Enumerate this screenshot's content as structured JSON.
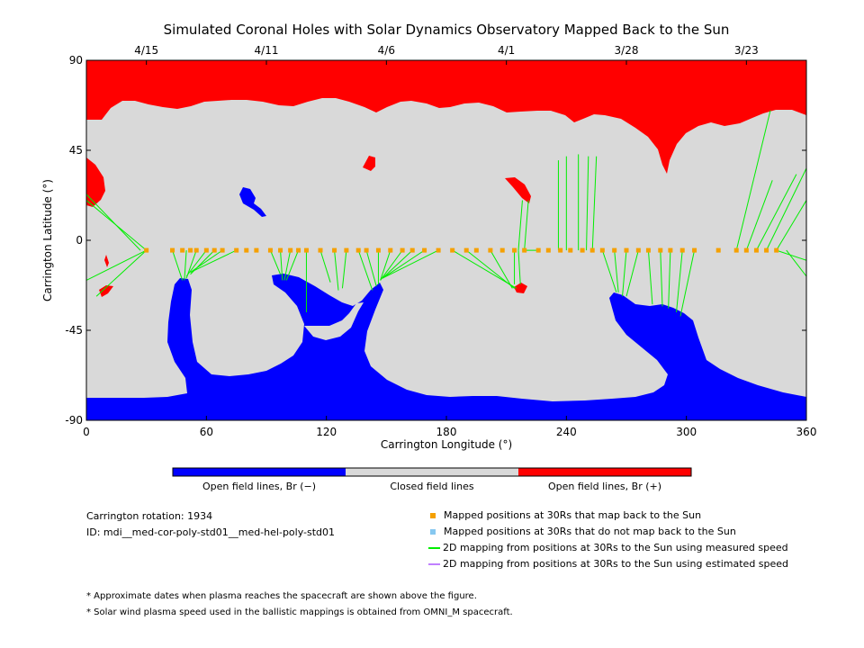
{
  "title": "Simulated Coronal Holes with Solar Dynamics Observatory Mapped Back to the Sun",
  "colors": {
    "open_negative": "#0000ff",
    "closed": "#d9d9d9",
    "open_positive": "#ff0000",
    "mapped_yes": "#f5a000",
    "mapped_no": "#87c8f0",
    "measured_line": "#00ee00",
    "estimated_line": "#c080ff"
  },
  "colorbar": {
    "labels": [
      "Open field lines, Br (−)",
      "Closed field lines",
      "Open field lines, Br (+)"
    ]
  },
  "info": {
    "rotation": "Carrington rotation: 1934",
    "id": "ID: mdi__med-cor-poly-std01__med-hel-poly-std01"
  },
  "legend": {
    "items": [
      {
        "kind": "square",
        "color": "#f5a000",
        "label": "Mapped positions at 30Rs that map back to the Sun"
      },
      {
        "kind": "square",
        "color": "#87c8f0",
        "label": "Mapped positions at 30Rs that do not map back to the Sun"
      },
      {
        "kind": "line",
        "color": "#00ee00",
        "label": "2D mapping from positions at 30Rs to the Sun using measured speed"
      },
      {
        "kind": "line",
        "color": "#c080ff",
        "label": "2D mapping from positions at 30Rs to the Sun using estimated speed"
      }
    ]
  },
  "notes": [
    "* Approximate dates when plasma reaches the spacecraft are shown above the figure.",
    "* Solar wind plasma speed used in the ballistic mappings is obtained from OMNI_M spacecraft."
  ],
  "chart_data": {
    "type": "map",
    "title": "Simulated Coronal Holes with Solar Dynamics Observatory Mapped Back to the Sun",
    "xlabel": "Carrington Longitude (°)",
    "ylabel": "Carrington Latitude (°)",
    "xlim": [
      0,
      360
    ],
    "ylim": [
      -90,
      90
    ],
    "xticks": [
      0,
      60,
      120,
      180,
      240,
      300,
      360
    ],
    "yticks": [
      -90,
      -45,
      0,
      45,
      90
    ],
    "top_axis": {
      "ticks": [
        {
          "label": "4/15",
          "lon": 30
        },
        {
          "label": "4/11",
          "lon": 90
        },
        {
          "label": "4/6",
          "lon": 150
        },
        {
          "label": "4/1",
          "lon": 210
        },
        {
          "label": "3/28",
          "lon": 270
        },
        {
          "label": "3/23",
          "lon": 330
        }
      ]
    },
    "mapped_points": [
      [
        30,
        -5
      ],
      [
        43,
        -5
      ],
      [
        48,
        -5
      ],
      [
        52,
        -5
      ],
      [
        55,
        -5
      ],
      [
        60,
        -5
      ],
      [
        64,
        -5
      ],
      [
        68,
        -5
      ],
      [
        75,
        -5
      ],
      [
        80,
        -5
      ],
      [
        85,
        -5
      ],
      [
        92,
        -5
      ],
      [
        97,
        -5
      ],
      [
        102,
        -5
      ],
      [
        106,
        -5
      ],
      [
        110,
        -5
      ],
      [
        117,
        -5
      ],
      [
        124,
        -5
      ],
      [
        130,
        -5
      ],
      [
        136,
        -5
      ],
      [
        140,
        -5
      ],
      [
        146,
        -5
      ],
      [
        152,
        -5
      ],
      [
        158,
        -5
      ],
      [
        163,
        -5
      ],
      [
        169,
        -5
      ],
      [
        176,
        -5
      ],
      [
        183,
        -5
      ],
      [
        190,
        -5
      ],
      [
        195,
        -5
      ],
      [
        202,
        -5
      ],
      [
        208,
        -5
      ],
      [
        214,
        -5
      ],
      [
        219,
        -5
      ],
      [
        226,
        -5
      ],
      [
        231,
        -5
      ],
      [
        237,
        -5
      ],
      [
        242,
        -5
      ],
      [
        248,
        -5
      ],
      [
        253,
        -5
      ],
      [
        258,
        -5
      ],
      [
        264,
        -5
      ],
      [
        270,
        -5
      ],
      [
        276,
        -5
      ],
      [
        281,
        -5
      ],
      [
        287,
        -5
      ],
      [
        292,
        -5
      ],
      [
        298,
        -5
      ],
      [
        304,
        -5
      ],
      [
        316,
        -5
      ],
      [
        325,
        -5
      ],
      [
        330,
        -5
      ],
      [
        335,
        -5
      ],
      [
        340,
        -5
      ],
      [
        345,
        -5
      ]
    ],
    "mapping_lines": [
      [
        [
          30,
          -5
        ],
        [
          5,
          -28
        ]
      ],
      [
        [
          30,
          -5
        ],
        [
          0,
          -20
        ]
      ],
      [
        [
          0,
          20
        ],
        [
          30,
          -5
        ]
      ],
      [
        [
          0,
          23
        ],
        [
          27,
          -5
        ]
      ],
      [
        [
          43,
          -5
        ],
        [
          48,
          -20
        ]
      ],
      [
        [
          50,
          -5
        ],
        [
          49,
          -20
        ]
      ],
      [
        [
          55,
          -5
        ],
        [
          50,
          -19
        ]
      ],
      [
        [
          60,
          -5
        ],
        [
          50,
          -18
        ]
      ],
      [
        [
          64,
          -5
        ],
        [
          52,
          -17
        ]
      ],
      [
        [
          68,
          -5
        ],
        [
          52,
          -16
        ]
      ],
      [
        [
          75,
          -5
        ],
        [
          52,
          -16
        ]
      ],
      [
        [
          92,
          -5
        ],
        [
          97,
          -17
        ]
      ],
      [
        [
          97,
          -5
        ],
        [
          98,
          -20
        ]
      ],
      [
        [
          102,
          -5
        ],
        [
          99,
          -20
        ]
      ],
      [
        [
          106,
          -5
        ],
        [
          100,
          -20
        ]
      ],
      [
        [
          110,
          -5
        ],
        [
          110,
          -36
        ]
      ],
      [
        [
          117,
          -5
        ],
        [
          122,
          -21
        ]
      ],
      [
        [
          124,
          -5
        ],
        [
          126,
          -25
        ]
      ],
      [
        [
          130,
          -5
        ],
        [
          128,
          -24
        ]
      ],
      [
        [
          136,
          -5
        ],
        [
          143,
          -25
        ]
      ],
      [
        [
          140,
          -5
        ],
        [
          145,
          -23
        ]
      ],
      [
        [
          146,
          -5
        ],
        [
          146,
          -22
        ]
      ],
      [
        [
          152,
          -5
        ],
        [
          147,
          -20
        ]
      ],
      [
        [
          158,
          -5
        ],
        [
          147,
          -20
        ]
      ],
      [
        [
          163,
          -5
        ],
        [
          148,
          -19
        ]
      ],
      [
        [
          169,
          -5
        ],
        [
          148,
          -19
        ]
      ],
      [
        [
          176,
          -5
        ],
        [
          148,
          -19
        ]
      ],
      [
        [
          183,
          -5
        ],
        [
          215,
          -24
        ]
      ],
      [
        [
          190,
          -5
        ],
        [
          214,
          -24
        ]
      ],
      [
        [
          202,
          -5
        ],
        [
          213,
          -24
        ]
      ],
      [
        [
          214,
          -5
        ],
        [
          214,
          -22
        ]
      ],
      [
        [
          219,
          -5
        ],
        [
          219,
          -6
        ]
      ],
      [
        [
          216,
          -5
        ],
        [
          217,
          -22
        ]
      ],
      [
        [
          226,
          -5
        ],
        [
          218,
          -5
        ]
      ],
      [
        [
          216,
          -5
        ],
        [
          218,
          20
        ]
      ],
      [
        [
          219,
          -5
        ],
        [
          221,
          20
        ]
      ],
      [
        [
          236,
          -5
        ],
        [
          236,
          40
        ]
      ],
      [
        [
          240,
          -5
        ],
        [
          240,
          42
        ]
      ],
      [
        [
          246,
          -5
        ],
        [
          246,
          43
        ]
      ],
      [
        [
          250,
          -5
        ],
        [
          251,
          42
        ]
      ],
      [
        [
          253,
          -5
        ],
        [
          255,
          42
        ]
      ],
      [
        [
          258,
          -5
        ],
        [
          265,
          -26
        ]
      ],
      [
        [
          264,
          -5
        ],
        [
          266,
          -26
        ]
      ],
      [
        [
          270,
          -5
        ],
        [
          268,
          -28
        ]
      ],
      [
        [
          276,
          -5
        ],
        [
          270,
          -28
        ]
      ],
      [
        [
          281,
          -5
        ],
        [
          283,
          -32
        ]
      ],
      [
        [
          287,
          -5
        ],
        [
          288,
          -33
        ]
      ],
      [
        [
          292,
          -5
        ],
        [
          291,
          -34
        ]
      ],
      [
        [
          298,
          -5
        ],
        [
          295,
          -36
        ]
      ],
      [
        [
          304,
          -5
        ],
        [
          297,
          -38
        ]
      ],
      [
        [
          330,
          -5
        ],
        [
          343,
          30
        ]
      ],
      [
        [
          335,
          -5
        ],
        [
          355,
          33
        ]
      ],
      [
        [
          340,
          -5
        ],
        [
          360,
          36
        ]
      ],
      [
        [
          345,
          -5
        ],
        [
          360,
          20
        ]
      ],
      [
        [
          325,
          -5
        ],
        [
          342,
          65
        ]
      ],
      [
        [
          345,
          -5
        ],
        [
          360,
          -10
        ]
      ],
      [
        [
          350,
          -5
        ],
        [
          360,
          -18
        ]
      ]
    ]
  }
}
